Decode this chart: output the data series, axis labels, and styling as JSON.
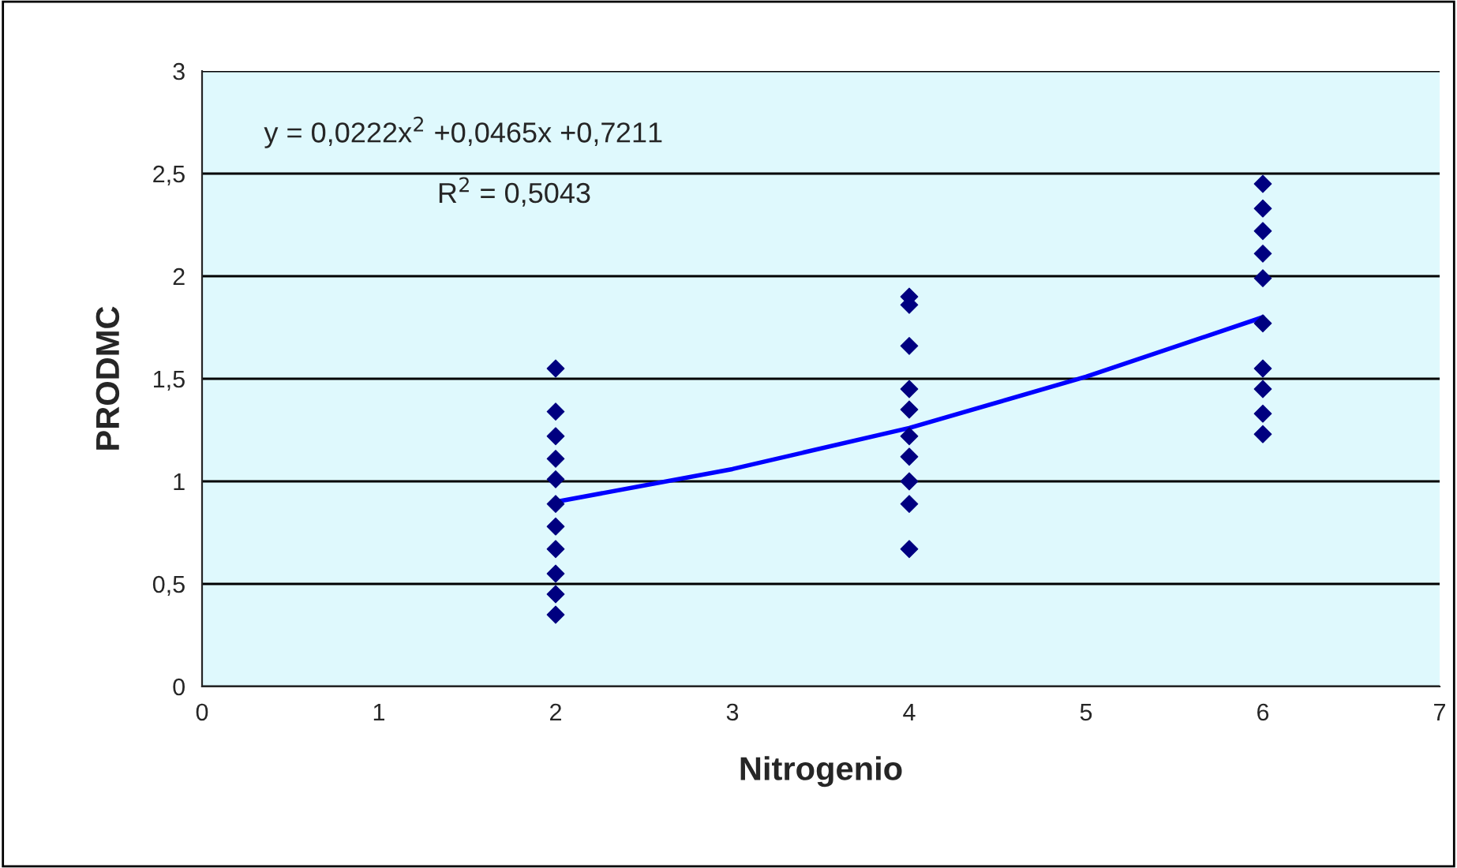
{
  "chart_data": {
    "type": "scatter",
    "xlabel": "Nitrogenio",
    "ylabel": "PRODMC",
    "series": [
      {
        "color": "#000080",
        "marker": "diamond",
        "x": [
          2,
          2,
          2,
          2,
          2,
          2,
          2,
          2,
          2,
          2,
          2,
          4,
          4,
          4,
          4,
          4,
          4,
          4,
          4,
          4,
          4,
          6,
          6,
          6,
          6,
          6,
          6,
          6,
          6,
          6,
          6
        ],
        "values": [
          1.55,
          1.34,
          1.22,
          1.11,
          1.01,
          0.89,
          0.78,
          0.67,
          0.55,
          0.45,
          0.35,
          1.9,
          1.86,
          1.66,
          1.45,
          1.35,
          1.22,
          1.12,
          1.0,
          0.89,
          0.67,
          2.45,
          2.33,
          2.22,
          2.11,
          1.99,
          1.77,
          1.55,
          1.45,
          1.33,
          1.23
        ]
      },
      {
        "type": "line",
        "color": "#0000ff",
        "marker": "none",
        "line_style": "solid",
        "x": [
          2,
          3,
          4,
          5,
          6
        ],
        "values": [
          0.9,
          1.06,
          1.26,
          1.51,
          1.8
        ]
      }
    ],
    "xlim": [
      0,
      7
    ],
    "xticks": [
      0,
      1,
      2,
      3,
      4,
      5,
      6,
      7
    ],
    "ylim": [
      0,
      3
    ],
    "yticks": [
      0,
      {
        "value": 0.5,
        "label": "0,5"
      },
      1,
      {
        "value": 1.5,
        "label": "1,5"
      },
      2,
      {
        "value": 2.5,
        "label": "2,5"
      },
      3
    ],
    "grid": "y",
    "legend": false,
    "annotations": [
      "y = 0,0222x$^{2}$ +0,0465x +0,7211",
      "R$^{2}$ = 0,5043"
    ]
  }
}
